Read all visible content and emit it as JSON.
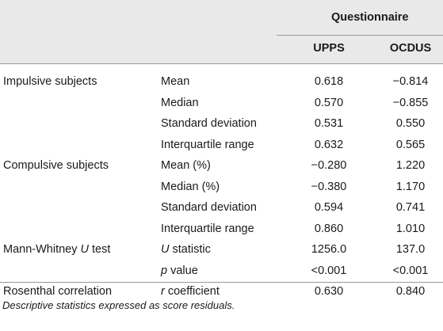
{
  "header": {
    "group_label": "Questionnaire",
    "columns": [
      "UPPS",
      "OCDUS"
    ]
  },
  "rows": [
    {
      "group": "Impulsive subjects",
      "stat_parts": [
        "Mean"
      ],
      "upps": "0.618",
      "ocdus": "−0.814"
    },
    {
      "group": "",
      "stat_parts": [
        "Median"
      ],
      "upps": "0.570",
      "ocdus": "−0.855"
    },
    {
      "group": "",
      "stat_parts": [
        "Standard deviation"
      ],
      "upps": "0.531",
      "ocdus": "0.550"
    },
    {
      "group": "",
      "stat_parts": [
        "Interquartile range"
      ],
      "upps": "0.632",
      "ocdus": "0.565"
    },
    {
      "group": "Compulsive subjects",
      "stat_parts": [
        "Mean (%)"
      ],
      "upps": "−0.280",
      "ocdus": "1.220"
    },
    {
      "group": "",
      "stat_parts": [
        "Median (%)"
      ],
      "upps": "−0.380",
      "ocdus": "1.170"
    },
    {
      "group": "",
      "stat_parts": [
        "Standard deviation"
      ],
      "upps": "0.594",
      "ocdus": "0.741"
    },
    {
      "group": "",
      "stat_parts": [
        "Interquartile range"
      ],
      "upps": "0.860",
      "ocdus": "1.010"
    },
    {
      "group_parts": [
        "Mann-Whitney ",
        "U",
        " test"
      ],
      "stat_parts": [
        "U",
        " statistic"
      ],
      "upps": "1256.0",
      "ocdus": "137.0"
    },
    {
      "group": "",
      "stat_parts": [
        "p",
        " value"
      ],
      "upps": "<0.001",
      "ocdus": "<0.001"
    },
    {
      "group": "Rosenthal correlation",
      "stat_parts": [
        "r",
        " coefficient"
      ],
      "upps": "0.630",
      "ocdus": "0.840"
    }
  ],
  "footnote": "Descriptive statistics expressed as score residuals."
}
